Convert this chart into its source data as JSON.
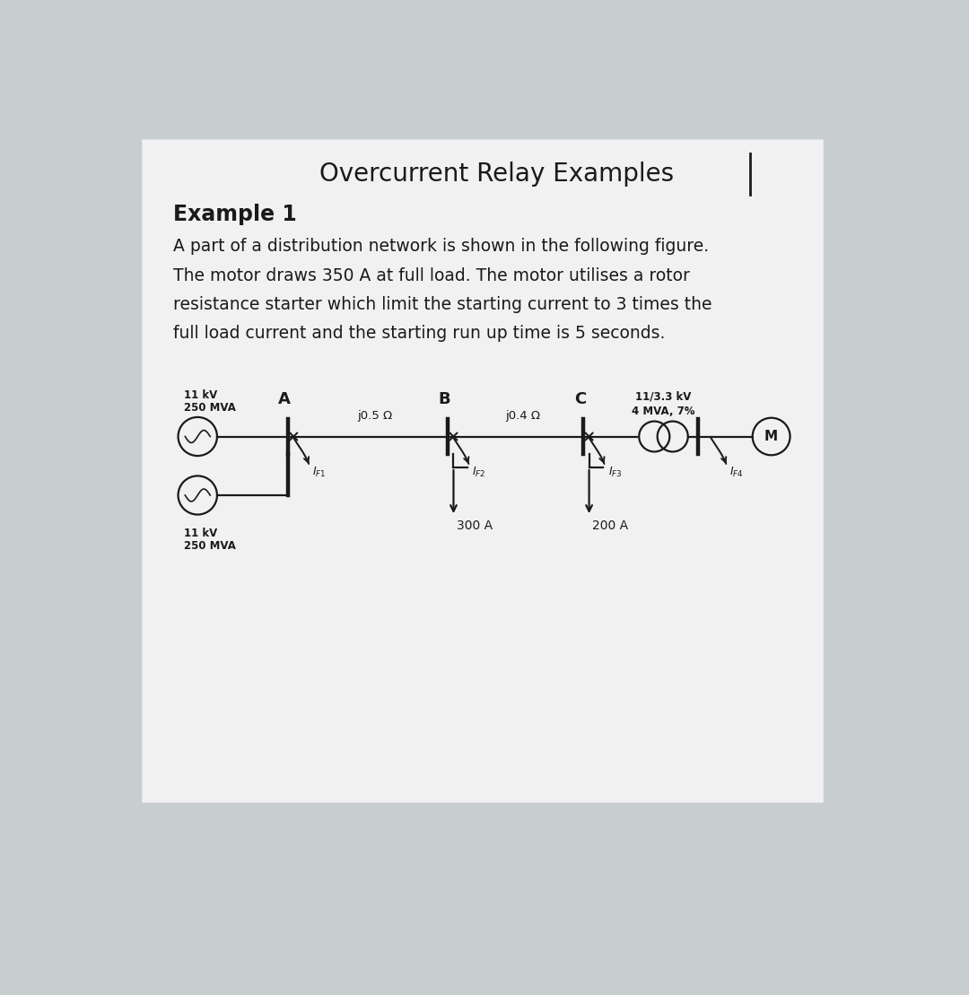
{
  "bg_color": "#c8cdd0",
  "card_color": "#f0f0f0",
  "title": "Overcurrent Relay Examples",
  "example_label": "Example 1",
  "desc_line1": "A part of a distribution network is shown in the following figure.",
  "desc_line2": "The motor draws 350 A at full load. The motor utilises a rotor",
  "desc_line3": "resistance starter which limit the starting current to 3 times the",
  "desc_line4": "full load current and the starting run up time is 5 seconds.",
  "source_top_label1": "11 kV",
  "source_top_label2": "250 MVA",
  "source_bot_label1": "11 kV",
  "source_bot_label2": "250 MVA",
  "node_A": "A",
  "node_B": "B",
  "node_C": "C",
  "impedance_AB": "j0.5 Ω",
  "impedance_BC": "j0.4 Ω",
  "transformer_label1": "11/3.3 kV",
  "transformer_label2": "4 MVA, 7%",
  "motor_label": "M",
  "load_B": "300 A",
  "load_C": "200 A",
  "relay_label_1": "$I_{F1}$",
  "relay_label_2": "$I_{F2}$",
  "relay_label_3": "$I_{F3}$",
  "relay_label_4": "$I_{F4}$",
  "text_color": "#1a1a1a",
  "line_color": "#1a1a1a"
}
